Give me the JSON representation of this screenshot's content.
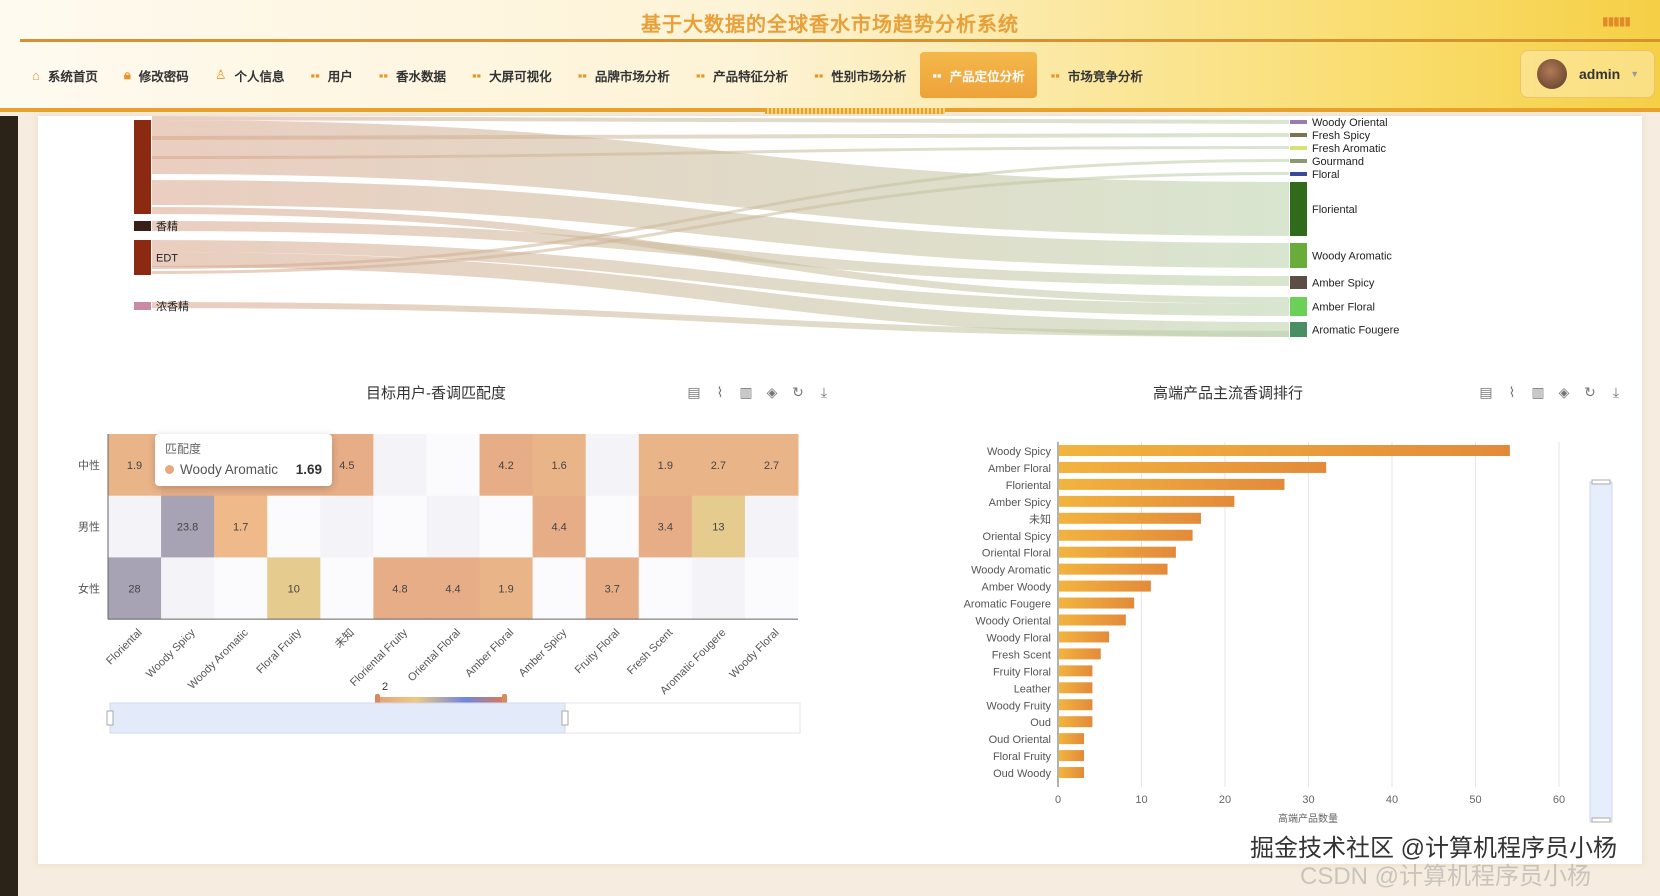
{
  "header": {
    "title": "基于大数据的全球香水市场趋势分析系统",
    "user": "admin"
  },
  "nav": [
    {
      "label": "系统首页",
      "icon": "home-icon"
    },
    {
      "label": "修改密码",
      "icon": "lock-icon"
    },
    {
      "label": "个人信息",
      "icon": "user-icon"
    },
    {
      "label": "用户",
      "icon": "grid-icon"
    },
    {
      "label": "香水数据",
      "icon": "grid-icon"
    },
    {
      "label": "大屏可视化",
      "icon": "grid-icon"
    },
    {
      "label": "品牌市场分析",
      "icon": "grid-icon"
    },
    {
      "label": "产品特征分析",
      "icon": "grid-icon"
    },
    {
      "label": "性别市场分析",
      "icon": "grid-icon"
    },
    {
      "label": "产品定位分析",
      "icon": "grid-icon",
      "active": true
    },
    {
      "label": "市场竞争分析",
      "icon": "grid-icon"
    }
  ],
  "sankey": {
    "left_nodes": [
      {
        "name": "",
        "color": "#8b2a10"
      },
      {
        "name": "香精",
        "color": "#3a1e18"
      },
      {
        "name": "EDT",
        "color": "#8b2a10"
      },
      {
        "name": "浓香精",
        "color": "#c98aa6"
      }
    ],
    "right_nodes": [
      {
        "name": "Woody Oriental",
        "color": "#9b7bb0"
      },
      {
        "name": "Fresh Spicy",
        "color": "#7a7550"
      },
      {
        "name": "Fresh Aromatic",
        "color": "#d8e07a"
      },
      {
        "name": "Gourmand",
        "color": "#8a9a70"
      },
      {
        "name": "Floral",
        "color": "#3a4a9a"
      },
      {
        "name": "Floriental",
        "color": "#2f6b1a"
      },
      {
        "name": "Woody Aromatic",
        "color": "#6aac3a"
      },
      {
        "name": "Amber Spicy",
        "color": "#5d4d44"
      },
      {
        "name": "Amber Floral",
        "color": "#6ccf57"
      },
      {
        "name": "Aromatic Fougere",
        "color": "#4a8f64"
      }
    ]
  },
  "heatmap_panel": {
    "title": "目标用户-香调匹配度",
    "toolbox": [
      "data-view-icon",
      "line-icon",
      "bar-icon",
      "stack-icon",
      "refresh-icon",
      "download-icon"
    ],
    "tooltip": {
      "title": "匹配度",
      "name": "Woody Aromatic",
      "value": "1.69"
    },
    "visual_map_label": "2"
  },
  "bar_panel": {
    "title": "高端产品主流香调排行",
    "toolbox": [
      "data-view-icon",
      "line-icon",
      "bar-icon",
      "stack-icon",
      "refresh-icon",
      "download-icon"
    ]
  },
  "chart_data": [
    {
      "type": "heatmap",
      "title": "目标用户-香调匹配度",
      "categories": [
        "Floriental",
        "Woody Spicy",
        "Woody Aromatic",
        "Floral Fruity",
        "未知",
        "Floriental Fruity",
        "Oriental Floral",
        "Amber Floral",
        "Amber Spicy",
        "Fruity Floral",
        "Fresh Scent",
        "Aromatic Fougere",
        "Woody Floral"
      ],
      "rows": [
        "中性",
        "男性",
        "女性"
      ],
      "values": [
        [
          1.9,
          null,
          null,
          null,
          4.5,
          null,
          null,
          4.2,
          1.6,
          null,
          1.9,
          2.7,
          2.7
        ],
        [
          null,
          23.8,
          1.7,
          null,
          null,
          null,
          null,
          null,
          4.4,
          null,
          3.4,
          13,
          null
        ],
        [
          28,
          null,
          null,
          10,
          null,
          4.8,
          4.4,
          1.9,
          null,
          3.7,
          null,
          null,
          null
        ]
      ],
      "hidden_filled": [
        [
          1,
          2,
          3
        ],
        [],
        []
      ]
    },
    {
      "type": "bar",
      "orientation": "horizontal",
      "title": "高端产品主流香调排行",
      "xlabel": "高端产品数量",
      "xlim": [
        0,
        60
      ],
      "xticks": [
        0,
        10,
        20,
        30,
        40,
        50,
        60
      ],
      "grid": true,
      "categories": [
        "Woody Spicy",
        "Amber Floral",
        "Floriental",
        "Amber Spicy",
        "未知",
        "Oriental Spicy",
        "Oriental Floral",
        "Woody Aromatic",
        "Amber Woody",
        "Aromatic Fougere",
        "Woody Oriental",
        "Woody Floral",
        "Fresh Scent",
        "Fruity Floral",
        "Leather",
        "Woody Fruity",
        "Oud",
        "Oud Oriental",
        "Floral Fruity",
        "Oud Woody"
      ],
      "values": [
        54,
        32,
        27,
        21,
        17,
        16,
        14,
        13,
        11,
        9,
        8,
        6,
        5,
        4,
        4,
        4,
        4,
        3,
        3,
        3
      ]
    }
  ],
  "watermark": "掘金技术社区 @计算机程序员小杨",
  "watermark2": "CSDN @计算机程序员小杨"
}
